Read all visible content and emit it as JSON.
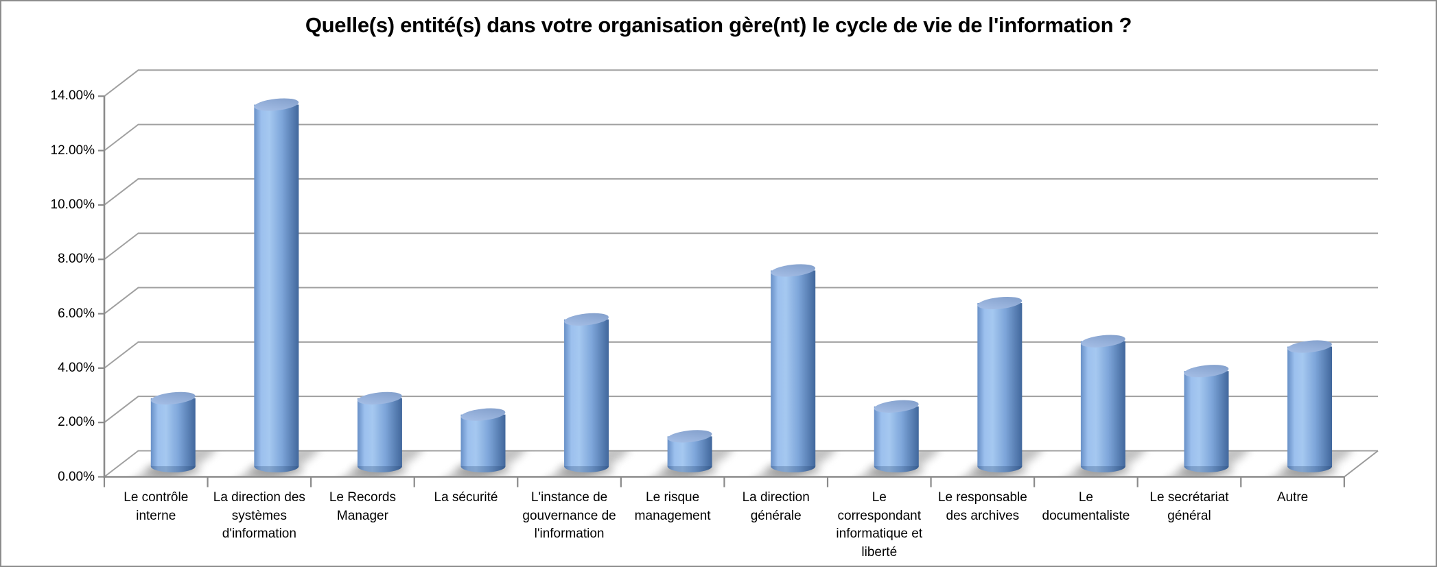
{
  "title": "Quelle(s) entité(s) dans votre organisation gère(nt) le cycle de vie de l'information ?",
  "chart_data": {
    "type": "bar",
    "render_style": "3d-cylinder-vertical",
    "title": "Quelle(s) entité(s) dans votre organisation gère(nt) le cycle de vie de l'information ?",
    "categories": [
      "Le contrôle interne",
      "La direction des systèmes d'information",
      "Le Records Manager",
      "La sécurité",
      "L'instance de gouvernance de l'information",
      "Le risque management",
      "La direction générale",
      "Le correspondant informatique et liberté",
      "Le responsable des archives",
      "Le documentaliste",
      "Le secrétariat général",
      "Autre"
    ],
    "category_display_lines": [
      [
        "Le contrôle",
        "interne"
      ],
      [
        "La direction des",
        "systèmes",
        "d'information"
      ],
      [
        "Le Records",
        "Manager"
      ],
      [
        "La sécurité"
      ],
      [
        "L'instance de",
        "gouvernance de",
        "l'information"
      ],
      [
        "Le risque",
        "management"
      ],
      [
        "La direction",
        "générale"
      ],
      [
        "Le",
        "correspondant",
        "informatique et",
        "liberté"
      ],
      [
        "Le responsable",
        "des archives"
      ],
      [
        "Le",
        "documentaliste"
      ],
      [
        "Le secrétariat",
        "général"
      ],
      [
        "Autre"
      ]
    ],
    "values": [
      2.5,
      13.3,
      2.5,
      1.9,
      5.4,
      1.1,
      7.2,
      2.2,
      6.0,
      4.6,
      3.5,
      4.4
    ],
    "unit": "%",
    "xlabel": "",
    "ylabel": "",
    "ylim": [
      0,
      14
    ],
    "ytick_step": 2,
    "ytick_labels": [
      "0.00%",
      "2.00%",
      "4.00%",
      "6.00%",
      "8.00%",
      "10.00%",
      "12.00%",
      "14.00%"
    ],
    "grid": true,
    "legend": null,
    "colors": {
      "bar_body_gradient": [
        "#6890C7",
        "#9CC0EE",
        "#A5C8F0",
        "#7EA6DA",
        "#41679C"
      ],
      "bar_top_gradient": [
        "#A9C2E9",
        "#7E9BC8"
      ],
      "bar_bottom_shade": "#1D3C66",
      "gridline": "#A0A0A0",
      "axis": "#8A8A8A",
      "shadow": "#8F8F8F",
      "text": "#000000",
      "background": "#FFFFFF",
      "frame_border": "#8C8C8C"
    }
  }
}
